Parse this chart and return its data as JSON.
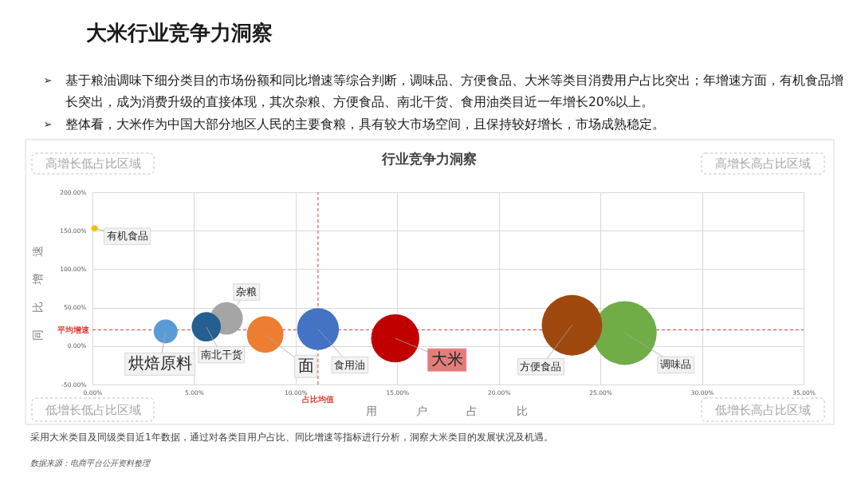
{
  "chart_data": {
    "type": "bubble",
    "title": "大米行业竞争力洞察",
    "subtitle": "行业竞争力洞察",
    "xlabel": "用 户 占 比",
    "ylabel": "同 比 增 速",
    "annotations": [
      "➢ 基于粮油调味下细分类目的市场份额和同比增速等综合判断，调味品、方便食品、大米等类目消费用户占比突出；年增速方面，有机食品增长突出，成为消费升级的直接体现，其次杂粮、方便食品、南北干货、食用油类目近一年增长20%以上。",
      "➢ 整体看，大米作为中国大部分地区人民的主要食粮，具有较大市场空间，且保持较好增长，市场成熟稳定。",
      "高增长低占比区域",
      "高增长高占比区域",
      "低增长低占比区域",
      "低增长高占比区域",
      "采用大米类目及同级类目近1年数据，通过对各类目用户占比、同比增速等指标进行分析，洞察大米类目的发展状况及机遇。",
      "数据来源：电商平台公开资料整理"
    ],
    "series": [
      {
        "name": "有机食品",
        "color": "#ffc000",
        "x": [
          0.1
        ],
        "values": [
          153
        ],
        "sizes": [
          0.01
        ]
      },
      {
        "name": "烘焙原料",
        "color": "#5b9bd5",
        "x": [
          3.6
        ],
        "values": [
          19
        ],
        "sizes": [
          0.14
        ]
      },
      {
        "name": "南北干货",
        "color": "#255e91",
        "x": [
          5.6
        ],
        "values": [
          25
        ],
        "sizes": [
          0.21
        ]
      },
      {
        "name": "杂粮",
        "color": "#a5a5a5",
        "x": [
          6.6
        ],
        "values": [
          36
        ],
        "sizes": [
          0.26
        ]
      },
      {
        "name": "面",
        "color": "#ed7d31",
        "x": [
          8.5
        ],
        "values": [
          15
        ],
        "sizes": [
          0.33
        ]
      },
      {
        "name": "食用油",
        "color": "#4472c4",
        "x": [
          11.1
        ],
        "values": [
          22
        ],
        "sizes": [
          0.43
        ]
      },
      {
        "name": "大米",
        "color": "#c00000",
        "x": [
          14.9
        ],
        "values": [
          10
        ],
        "sizes": [
          0.57
        ]
      },
      {
        "name": "方便食品",
        "color": "#9e480e",
        "x": [
          23.6
        ],
        "values": [
          27
        ],
        "sizes": [
          0.9
        ]
      },
      {
        "name": "调味品",
        "color": "#70ad47",
        "x": [
          26.2
        ],
        "values": [
          17
        ],
        "sizes": [
          1
        ]
      }
    ],
    "xlim": [
      0,
      35
    ],
    "ylim": [
      -50,
      200
    ],
    "xticks": [
      {
        "value": 0,
        "label": "0.00%"
      },
      {
        "value": 5,
        "label": "5.00%"
      },
      {
        "value": 10,
        "label": "10.00%"
      },
      {
        "value": 15,
        "label": "15.00%"
      },
      {
        "value": 20,
        "label": "20.00%"
      },
      {
        "value": 25,
        "label": "25.00%"
      },
      {
        "value": 30,
        "label": "30.00%"
      },
      {
        "value": 35,
        "label": "35.00%"
      }
    ],
    "yticks": [
      {
        "value": -50,
        "label": "-50.00%"
      },
      {
        "value": 0,
        "label": "0.00%"
      },
      {
        "value": 50,
        "label": "50.00%"
      },
      {
        "value": 100,
        "label": "100.00%"
      },
      {
        "value": 150,
        "label": "150.00%"
      },
      {
        "value": 200,
        "label": "200.00%"
      }
    ],
    "ref_lines": [
      {
        "axis": "y",
        "value": 21,
        "label": "平均增速",
        "color": "#e03c31",
        "line_style": "dashed"
      },
      {
        "axis": "x",
        "value": 11.1,
        "label": "占比均值",
        "color": "#e03c31",
        "line_style": "dashed"
      }
    ],
    "grid": true
  }
}
